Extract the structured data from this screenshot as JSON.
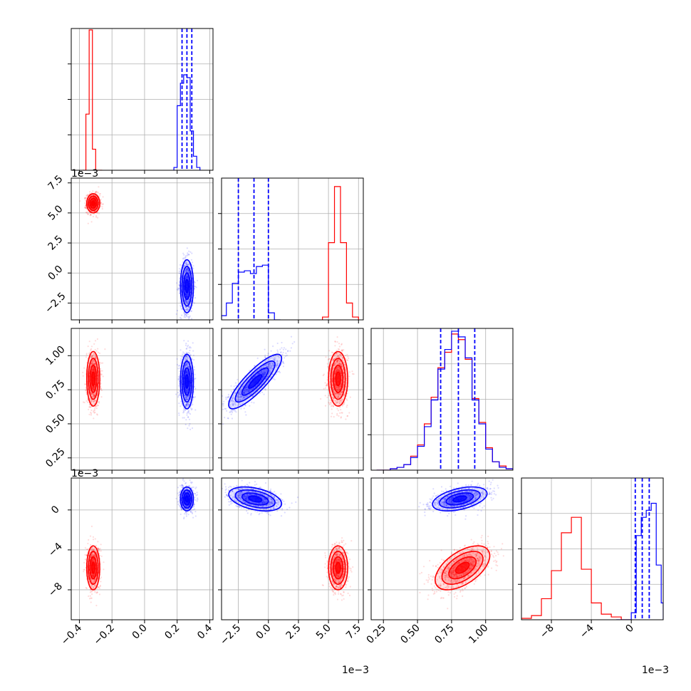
{
  "chart_data": {
    "type": "corner",
    "title": "",
    "colors": {
      "series_a": "#ff0000",
      "series_b": "#0000ff",
      "quantile_line": "#0000ff"
    },
    "grid": true,
    "parameters": [
      {
        "xlim": [
          -0.45,
          0.42
        ],
        "ticks": [
          -0.4,
          -0.2,
          0.0,
          0.2,
          0.4
        ],
        "tick_labels": [
          "−0.4",
          "−0.2",
          "0.0",
          "0.2",
          "0.4"
        ],
        "offset_text": ""
      },
      {
        "xlim": [
          -0.0039,
          0.0079
        ],
        "ticks": [
          -0.0025,
          0.0,
          0.0025,
          0.005,
          0.0075
        ],
        "tick_labels": [
          "−2.5",
          "0.0",
          "2.5",
          "5.0",
          "7.5"
        ],
        "offset_text": "1e−3"
      },
      {
        "xlim": [
          0.16,
          1.2
        ],
        "ticks": [
          0.25,
          0.5,
          0.75,
          1.0
        ],
        "tick_labels": [
          "0.25",
          "0.50",
          "0.75",
          "1.00"
        ],
        "offset_text": ""
      },
      {
        "xlim": [
          -0.011,
          0.0032
        ],
        "ticks": [
          -0.008,
          -0.004,
          0.0
        ],
        "tick_labels": [
          "−8",
          "−4",
          "0"
        ],
        "offset_text": "1e−3"
      }
    ],
    "series": [
      {
        "name": "",
        "color": "#ff0000",
        "mean": [
          -0.315,
          0.0058,
          0.83,
          -0.0058
        ],
        "std": [
          0.02,
          0.0004,
          0.1,
          0.0011
        ]
      },
      {
        "name": "",
        "color": "#0000ff",
        "mean": [
          0.26,
          -0.0011,
          0.81,
          0.0011
        ],
        "std": [
          0.02,
          0.0011,
          0.1,
          0.0006
        ]
      }
    ],
    "quantiles_series_b": [
      [
        0.23,
        0.26,
        0.29
      ],
      [
        -0.0025,
        -0.0012,
        0.0
      ],
      [
        0.67,
        0.8,
        0.92
      ],
      [
        0.0004,
        0.0011,
        0.0018
      ]
    ],
    "histograms": [
      {
        "series_a": {
          "bins": [
            [
              -0.38,
              -0.36
            ],
            [
              -0.36,
              -0.34
            ],
            [
              -0.34,
              -0.32
            ],
            [
              -0.32,
              -0.3
            ],
            [
              -0.3,
              -0.28
            ],
            [
              -0.28,
              -0.26
            ]
          ],
          "heights": [
            0.0,
            0.4,
            1.0,
            0.15,
            0.0,
            0.0
          ]
        },
        "series_b": {
          "bins": [
            [
              0.18,
              0.2
            ],
            [
              0.2,
              0.22
            ],
            [
              0.22,
              0.24
            ],
            [
              0.24,
              0.26
            ],
            [
              0.26,
              0.28
            ],
            [
              0.28,
              0.3
            ],
            [
              0.3,
              0.32
            ],
            [
              0.32,
              0.34
            ]
          ],
          "heights": [
            0.02,
            0.46,
            0.62,
            0.68,
            0.66,
            0.28,
            0.1,
            0.02
          ]
        }
      },
      {
        "series_a": {
          "bins": [
            [
              0.0045,
              0.005
            ],
            [
              0.005,
              0.0055
            ],
            [
              0.0055,
              0.006
            ],
            [
              0.006,
              0.0065
            ],
            [
              0.0065,
              0.007
            ],
            [
              0.007,
              0.0075
            ]
          ],
          "heights": [
            0.02,
            0.55,
            0.95,
            0.55,
            0.12,
            0.02
          ]
        },
        "series_b": {
          "bins": [
            [
              -0.0039,
              -0.0035
            ],
            [
              -0.0035,
              -0.003
            ],
            [
              -0.003,
              -0.0025
            ],
            [
              -0.0025,
              -0.002
            ],
            [
              -0.002,
              -0.0015
            ],
            [
              -0.0015,
              -0.001
            ],
            [
              -0.001,
              -0.0005
            ],
            [
              -0.0005,
              0.0
            ],
            [
              0.0,
              0.0005
            ],
            [
              0.0005,
              0.001
            ]
          ],
          "heights": [
            0.03,
            0.12,
            0.26,
            0.34,
            0.35,
            0.33,
            0.38,
            0.39,
            0.05,
            0.0
          ]
        }
      },
      {
        "series_a": {
          "bins": [
            [
              0.2,
              0.25
            ],
            [
              0.25,
              0.3
            ],
            [
              0.3,
              0.35
            ],
            [
              0.35,
              0.4
            ],
            [
              0.4,
              0.45
            ],
            [
              0.45,
              0.5
            ],
            [
              0.5,
              0.55
            ],
            [
              0.55,
              0.6
            ],
            [
              0.6,
              0.65
            ],
            [
              0.65,
              0.7
            ],
            [
              0.7,
              0.75
            ],
            [
              0.75,
              0.8
            ],
            [
              0.8,
              0.85
            ],
            [
              0.85,
              0.9
            ],
            [
              0.9,
              0.95
            ],
            [
              0.95,
              1.0
            ],
            [
              1.0,
              1.05
            ],
            [
              1.05,
              1.1
            ],
            [
              1.1,
              1.15
            ],
            [
              1.15,
              1.2
            ]
          ],
          "heights": [
            0.0,
            0.0,
            0.01,
            0.02,
            0.04,
            0.1,
            0.18,
            0.33,
            0.52,
            0.73,
            0.84,
            0.97,
            0.93,
            0.79,
            0.51,
            0.34,
            0.16,
            0.06,
            0.03,
            0.01
          ]
        },
        "series_b": {
          "bins": [
            [
              0.2,
              0.25
            ],
            [
              0.25,
              0.3
            ],
            [
              0.3,
              0.35
            ],
            [
              0.35,
              0.4
            ],
            [
              0.4,
              0.45
            ],
            [
              0.45,
              0.5
            ],
            [
              0.5,
              0.55
            ],
            [
              0.55,
              0.6
            ],
            [
              0.6,
              0.65
            ],
            [
              0.65,
              0.7
            ],
            [
              0.7,
              0.75
            ],
            [
              0.75,
              0.8
            ],
            [
              0.8,
              0.85
            ],
            [
              0.85,
              0.9
            ],
            [
              0.9,
              0.95
            ],
            [
              0.95,
              1.0
            ],
            [
              1.0,
              1.05
            ],
            [
              1.05,
              1.1
            ],
            [
              1.1,
              1.15
            ],
            [
              1.15,
              1.2
            ]
          ],
          "heights": [
            0.0,
            0.0,
            0.01,
            0.02,
            0.04,
            0.09,
            0.17,
            0.31,
            0.5,
            0.72,
            0.86,
            0.99,
            0.95,
            0.8,
            0.5,
            0.33,
            0.15,
            0.06,
            0.02,
            0.01
          ]
        }
      },
      {
        "series_a": {
          "bins": [
            [
              -0.011,
              -0.01
            ],
            [
              -0.01,
              -0.009
            ],
            [
              -0.009,
              -0.008
            ],
            [
              -0.008,
              -0.007
            ],
            [
              -0.007,
              -0.006
            ],
            [
              -0.006,
              -0.005
            ],
            [
              -0.005,
              -0.004
            ],
            [
              -0.004,
              -0.003
            ],
            [
              -0.003,
              -0.002
            ],
            [
              -0.002,
              -0.001
            ],
            [
              -0.001,
              0.0
            ]
          ],
          "heights": [
            0.01,
            0.03,
            0.15,
            0.35,
            0.62,
            0.73,
            0.36,
            0.12,
            0.04,
            0.02,
            0.0
          ]
        },
        "series_b": {
          "bins": [
            [
              -0.0015,
              -0.001
            ],
            [
              -0.001,
              -0.0005
            ],
            [
              -0.0005,
              0.0
            ],
            [
              0.0,
              0.0005
            ],
            [
              0.0005,
              0.001
            ],
            [
              0.001,
              0.0015
            ],
            [
              0.0015,
              0.002
            ],
            [
              0.002,
              0.0025
            ],
            [
              0.0025,
              0.003
            ],
            [
              0.003,
              0.0032
            ]
          ],
          "heights": [
            0.0,
            0.0,
            0.0,
            0.05,
            0.6,
            0.73,
            0.78,
            0.83,
            0.39,
            0.12
          ]
        }
      }
    ]
  }
}
